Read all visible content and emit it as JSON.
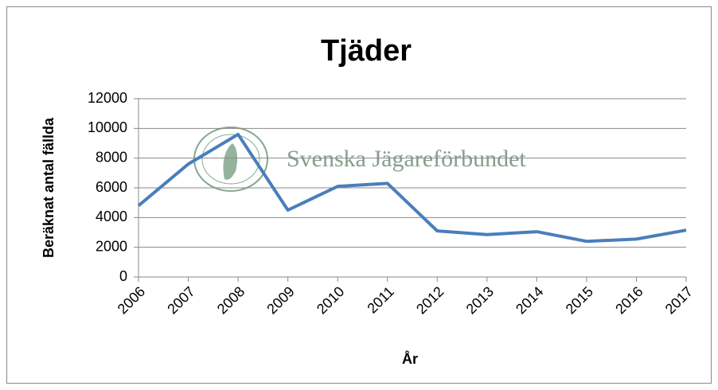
{
  "chart_data": {
    "type": "line",
    "title": "Tjäder",
    "watermark": "Svenska Jägareförbundet",
    "x_label": "År",
    "y_label": "Beräknat antal fällda",
    "categories": [
      "2006",
      "2007",
      "2008",
      "2009",
      "2010",
      "2011",
      "2012",
      "2013",
      "2014",
      "2015",
      "2016",
      "2017"
    ],
    "series": [
      {
        "name": "Tjäder",
        "color": "#4a7ebb",
        "values": [
          4800,
          7600,
          9600,
          4500,
          6100,
          6300,
          3100,
          2850,
          3050,
          2400,
          2550,
          3150
        ]
      }
    ],
    "ylim": [
      0,
      12000
    ],
    "yticks": [
      0,
      2000,
      4000,
      6000,
      8000,
      10000,
      12000
    ],
    "grid": true
  }
}
